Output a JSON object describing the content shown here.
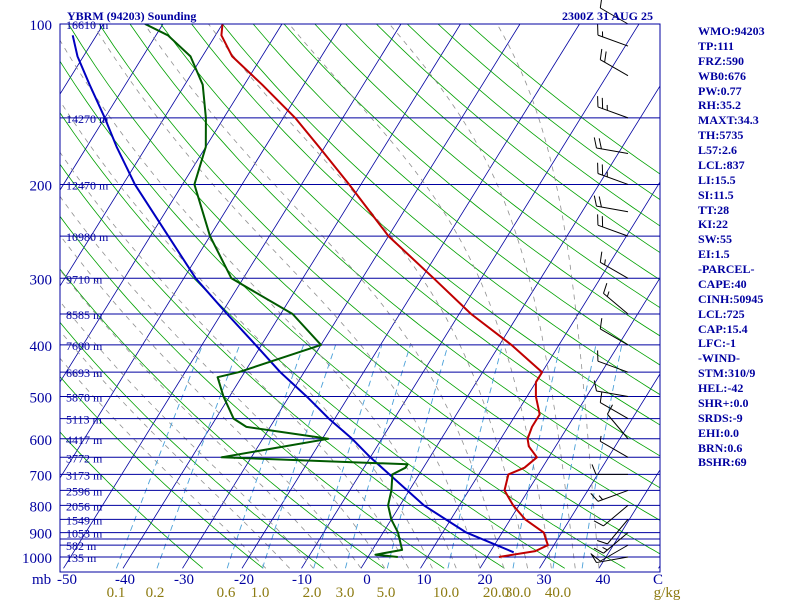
{
  "chart_data": {
    "type": "skew-t",
    "title": "YBRM (94203) Sounding",
    "valid_time": "2300Z 31 AUG 25",
    "pressure_labels": [
      "100",
      "200",
      "300",
      "400",
      "500",
      "600",
      "700",
      "800",
      "900",
      "1000"
    ],
    "pressure_axis_unit": "mb",
    "temperature_ticks": [
      "-50",
      "-40",
      "-30",
      "-20",
      "-10",
      "0",
      "10",
      "20",
      "30",
      "40",
      "C"
    ],
    "mixing_ratio_ticks": [
      "0.1",
      "0.2",
      "0.6",
      "1.0",
      "2.0",
      "3.0",
      "5.0",
      "10.0",
      "20.0",
      "30.0",
      "40.0",
      "g/kg"
    ],
    "isobars": [
      100,
      150,
      200,
      250,
      300,
      350,
      400,
      450,
      500,
      550,
      600,
      650,
      700,
      750,
      800,
      850,
      900,
      925,
      950,
      1000
    ],
    "heights": [
      {
        "p": 100,
        "label": "16610 m"
      },
      {
        "p": 150,
        "label": "14270 m"
      },
      {
        "p": 200,
        "label": "12470 m"
      },
      {
        "p": 250,
        "label": "10980 m"
      },
      {
        "p": 300,
        "label": "9710 m"
      },
      {
        "p": 350,
        "label": "8585 m"
      },
      {
        "p": 400,
        "label": "7600 m"
      },
      {
        "p": 450,
        "label": "6693 m"
      },
      {
        "p": 500,
        "label": "5870 m"
      },
      {
        "p": 550,
        "label": "5113 m"
      },
      {
        "p": 600,
        "label": "4417 m"
      },
      {
        "p": 650,
        "label": "3772 m"
      },
      {
        "p": 700,
        "label": "3173 m"
      },
      {
        "p": 750,
        "label": "2596 m"
      },
      {
        "p": 800,
        "label": "2056 m"
      },
      {
        "p": 850,
        "label": "1549 m"
      },
      {
        "p": 900,
        "label": "1053 m"
      },
      {
        "p": 950,
        "label": "582 m"
      },
      {
        "p": 1000,
        "label": "135 m"
      }
    ],
    "temperature": [
      {
        "p": 1000,
        "t": 22.0
      },
      {
        "p": 975,
        "t": 27.5
      },
      {
        "p": 950,
        "t": 29.0
      },
      {
        "p": 925,
        "t": 28.0
      },
      {
        "p": 900,
        "t": 27.0
      },
      {
        "p": 850,
        "t": 22.5
      },
      {
        "p": 800,
        "t": 19.0
      },
      {
        "p": 750,
        "t": 16.0
      },
      {
        "p": 700,
        "t": 15.0
      },
      {
        "p": 680,
        "t": 17.0
      },
      {
        "p": 650,
        "t": 18.0
      },
      {
        "p": 620,
        "t": 15.5
      },
      {
        "p": 600,
        "t": 14.5
      },
      {
        "p": 570,
        "t": 14.0
      },
      {
        "p": 540,
        "t": 14.0
      },
      {
        "p": 500,
        "t": 11.5
      },
      {
        "p": 470,
        "t": 10.0
      },
      {
        "p": 450,
        "t": 10.0
      },
      {
        "p": 400,
        "t": 2.0
      },
      {
        "p": 350,
        "t": -8.0
      },
      {
        "p": 300,
        "t": -18.0
      },
      {
        "p": 250,
        "t": -30.0
      },
      {
        "p": 200,
        "t": -42.0
      },
      {
        "p": 170,
        "t": -51.0
      },
      {
        "p": 150,
        "t": -58.0
      },
      {
        "p": 130,
        "t": -67.0
      },
      {
        "p": 115,
        "t": -75.0
      },
      {
        "p": 105,
        "t": -79.0
      },
      {
        "p": 100,
        "t": -80.0
      }
    ],
    "dewpoint": [
      {
        "p": 1000,
        "t": 5.0
      },
      {
        "p": 990,
        "t": 1.0
      },
      {
        "p": 970,
        "t": 5.0
      },
      {
        "p": 900,
        "t": 2.5
      },
      {
        "p": 850,
        "t": 0.0
      },
      {
        "p": 800,
        "t": -2.0
      },
      {
        "p": 750,
        "t": -3.0
      },
      {
        "p": 700,
        "t": -4.5
      },
      {
        "p": 680,
        "t": -3.0
      },
      {
        "p": 670,
        "t": -3.0
      },
      {
        "p": 650,
        "t": -35.0
      },
      {
        "p": 600,
        "t": -19.0
      },
      {
        "p": 570,
        "t": -34.0
      },
      {
        "p": 550,
        "t": -37.0
      },
      {
        "p": 500,
        "t": -41.0
      },
      {
        "p": 460,
        "t": -44.0
      },
      {
        "p": 450,
        "t": -41.0
      },
      {
        "p": 400,
        "t": -30.0
      },
      {
        "p": 350,
        "t": -38.0
      },
      {
        "p": 300,
        "t": -52.0
      },
      {
        "p": 250,
        "t": -60.0
      },
      {
        "p": 200,
        "t": -68.0
      },
      {
        "p": 170,
        "t": -70.0
      },
      {
        "p": 150,
        "t": -73.0
      },
      {
        "p": 130,
        "t": -77.0
      },
      {
        "p": 115,
        "t": -82.0
      },
      {
        "p": 105,
        "t": -88.0
      },
      {
        "p": 100,
        "t": -93.0
      }
    ],
    "parcel": [
      {
        "p": 980,
        "t": 24.0
      },
      {
        "p": 900,
        "t": 14.0
      },
      {
        "p": 800,
        "t": 4.0
      },
      {
        "p": 700,
        "t": -5.0
      },
      {
        "p": 650,
        "t": -10.0
      },
      {
        "p": 600,
        "t": -15.0
      },
      {
        "p": 550,
        "t": -21.0
      },
      {
        "p": 500,
        "t": -27.0
      },
      {
        "p": 450,
        "t": -34.0
      },
      {
        "p": 400,
        "t": -41.0
      },
      {
        "p": 350,
        "t": -49.0
      },
      {
        "p": 300,
        "t": -58.0
      },
      {
        "p": 250,
        "t": -67.0
      },
      {
        "p": 200,
        "t": -78.0
      },
      {
        "p": 170,
        "t": -85.0
      },
      {
        "p": 150,
        "t": -90.0
      },
      {
        "p": 130,
        "t": -96.0
      },
      {
        "p": 115,
        "t": -101.0
      },
      {
        "p": 105,
        "t": -104.0
      }
    ],
    "mixing_ratios": [
      0.1,
      0.2,
      0.6,
      1.0,
      2.0,
      3.0,
      5.0,
      10.0,
      20.0,
      30.0,
      40.0
    ],
    "dry_adiabats_theta_c": [
      -30,
      -20,
      -10,
      0,
      10,
      20,
      30,
      40,
      50,
      60,
      70,
      80,
      90,
      100,
      110,
      120,
      130,
      140,
      150,
      160,
      170,
      180
    ],
    "moist_adiabats_start_c": [
      -16,
      -12,
      -8,
      -4,
      0,
      4,
      8,
      12,
      16,
      20,
      24,
      28,
      32,
      36,
      40
    ],
    "isotherms": [
      -130,
      -120,
      -110,
      -100,
      -90,
      -80,
      -70,
      -60,
      -50,
      -40,
      -30,
      -20,
      -10,
      0,
      10,
      20,
      30,
      40,
      50
    ],
    "wind_barbs": [
      {
        "p": 100,
        "dir": 300,
        "spd": 10
      },
      {
        "p": 110,
        "dir": 290,
        "spd": 15
      },
      {
        "p": 125,
        "dir": 300,
        "spd": 20
      },
      {
        "p": 150,
        "dir": 290,
        "spd": 25
      },
      {
        "p": 175,
        "dir": 280,
        "spd": 20
      },
      {
        "p": 200,
        "dir": 290,
        "spd": 25
      },
      {
        "p": 225,
        "dir": 280,
        "spd": 20
      },
      {
        "p": 250,
        "dir": 290,
        "spd": 20
      },
      {
        "p": 300,
        "dir": 300,
        "spd": 15
      },
      {
        "p": 350,
        "dir": 310,
        "spd": 15
      },
      {
        "p": 400,
        "dir": 300,
        "spd": 10
      },
      {
        "p": 450,
        "dir": 290,
        "spd": 10
      },
      {
        "p": 500,
        "dir": 280,
        "spd": 10
      },
      {
        "p": 550,
        "dir": 300,
        "spd": 10
      },
      {
        "p": 600,
        "dir": 320,
        "spd": 10
      },
      {
        "p": 650,
        "dir": 300,
        "spd": 5
      },
      {
        "p": 700,
        "dir": 270,
        "spd": 10
      },
      {
        "p": 750,
        "dir": 250,
        "spd": 15
      },
      {
        "p": 800,
        "dir": 230,
        "spd": 10
      },
      {
        "p": 850,
        "dir": 220,
        "spd": 10
      },
      {
        "p": 900,
        "dir": 230,
        "spd": 15
      },
      {
        "p": 950,
        "dir": 240,
        "spd": 10
      },
      {
        "p": 1000,
        "dir": 260,
        "spd": 10
      }
    ]
  },
  "indices": [
    "WMO:94203",
    "TP:111",
    "FRZ:590",
    "WB0:676",
    "PW:0.77",
    "RH:35.2",
    "MAXT:34.3",
    "TH:5735",
    "L57:2.6",
    "LCL:837",
    "LI:15.5",
    "SI:11.5",
    "TT:28",
    "KI:22",
    "SW:55",
    "EI:1.5",
    "-PARCEL-",
    "CAPE:40",
    "CINH:50945",
    "LCL:725",
    "CAP:15.4",
    "LFC:-1",
    "-WIND-",
    "STM:310/9",
    "HEL:-42",
    "SHR+:0.0",
    "SRDS:-9",
    "EHI:0.0",
    "BRN:0.6",
    "BSHR:69"
  ],
  "colors": {
    "frame": "#0000a0",
    "isobar": "#0000a0",
    "isotherm": "#0000a0",
    "dry_adiabat": "#00a000",
    "moist_adiabat": "#909090",
    "mixing_ratio": "#4aa0d8",
    "temperature": "#c00000",
    "dewpoint": "#005a00",
    "parcel": "#0000c0",
    "axis_text": "#0000a0",
    "mixing_text": "#8c7a10",
    "wind": "#000000"
  }
}
